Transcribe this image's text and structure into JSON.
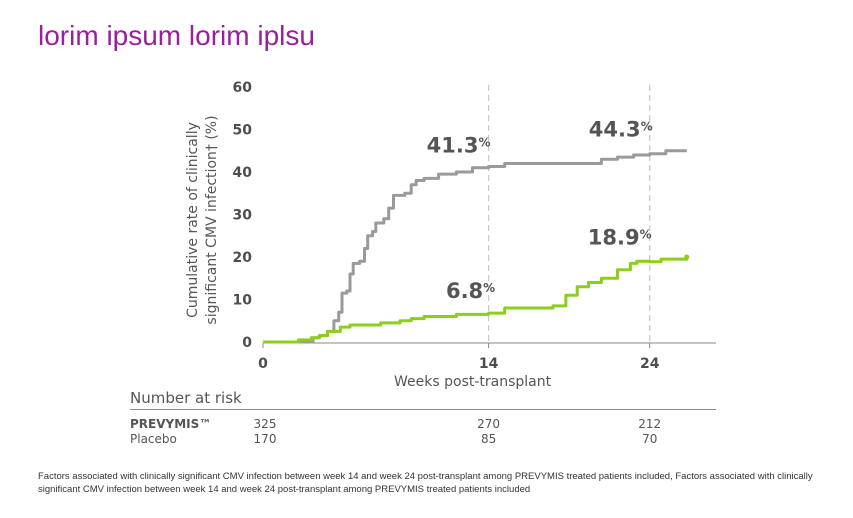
{
  "slide": {
    "title": "lorim ipsum lorim iplsu",
    "footnote": "Factors associated with clinically significant CMV infection between week 14 and week 24 post-transplant among PREVYMIS treated patients included, Factors associated with clinically significant CMV infection between week 14 and week 24 post-transplant among PREVYMIS treated patients included"
  },
  "chart_data": {
    "type": "line",
    "title": "",
    "xlabel": "Weeks post-transplant",
    "ylabel": "Cumulative rate of clinically significant CMV infection† (%)",
    "ylabel_lines": [
      "Cumulative rate of clinically",
      "significant CMV infection† (%)"
    ],
    "xlim": [
      0,
      26.5
    ],
    "ylim": [
      0,
      60
    ],
    "x_ticks": [
      0,
      14,
      24
    ],
    "y_ticks": [
      0,
      10,
      20,
      30,
      40,
      50,
      60
    ],
    "grid": false,
    "reference_lines_x": [
      14,
      24
    ],
    "colors": {
      "gray_series": "#9a9a9a",
      "green_series": "#8ccf1a",
      "title": "#9b1f9b",
      "text": "#555555"
    },
    "series": [
      {
        "color": "#9a9a9a",
        "points": [
          [
            0,
            0
          ],
          [
            3.0,
            0
          ],
          [
            3.1,
            1
          ],
          [
            3.5,
            1.5
          ],
          [
            4.0,
            2.5
          ],
          [
            4.4,
            5
          ],
          [
            4.7,
            7
          ],
          [
            4.9,
            11.5
          ],
          [
            5.2,
            12
          ],
          [
            5.4,
            16
          ],
          [
            5.6,
            18.5
          ],
          [
            6.0,
            19
          ],
          [
            6.3,
            22
          ],
          [
            6.5,
            25
          ],
          [
            6.8,
            26
          ],
          [
            7.0,
            28
          ],
          [
            7.5,
            29
          ],
          [
            7.8,
            31.5
          ],
          [
            8.1,
            34.5
          ],
          [
            8.8,
            35
          ],
          [
            9.2,
            37
          ],
          [
            9.5,
            38
          ],
          [
            10.0,
            38.5
          ],
          [
            10.9,
            39.5
          ],
          [
            12.0,
            40
          ],
          [
            13.0,
            41
          ],
          [
            14.0,
            41.3
          ],
          [
            15.0,
            42
          ],
          [
            17.0,
            42
          ],
          [
            19.0,
            42
          ],
          [
            21.0,
            43
          ],
          [
            22.0,
            43.5
          ],
          [
            23.0,
            44
          ],
          [
            24.0,
            44.3
          ],
          [
            25.0,
            45
          ],
          [
            26.3,
            45
          ]
        ]
      },
      {
        "color": "#8ccf1a",
        "points": [
          [
            0,
            0
          ],
          [
            2.0,
            0
          ],
          [
            2.2,
            0.5
          ],
          [
            3.0,
            1
          ],
          [
            3.5,
            1.5
          ],
          [
            4.0,
            2.5
          ],
          [
            4.8,
            3.5
          ],
          [
            5.4,
            4
          ],
          [
            6.2,
            4
          ],
          [
            7.3,
            4.5
          ],
          [
            8.5,
            5
          ],
          [
            9.2,
            5.5
          ],
          [
            10.0,
            6
          ],
          [
            12.0,
            6.5
          ],
          [
            14.0,
            6.8
          ],
          [
            15.0,
            8
          ],
          [
            16.0,
            8
          ],
          [
            18.0,
            8.5
          ],
          [
            18.8,
            11
          ],
          [
            19.5,
            13
          ],
          [
            20.2,
            14
          ],
          [
            21.0,
            15
          ],
          [
            22.0,
            17
          ],
          [
            22.8,
            18.5
          ],
          [
            23.2,
            19
          ],
          [
            24.0,
            18.9
          ],
          [
            24.7,
            19.5
          ],
          [
            26.3,
            20
          ]
        ]
      }
    ],
    "annotations": [
      {
        "x": 14,
        "y": 41.3,
        "value": "41.3",
        "unit": "%"
      },
      {
        "x": 24,
        "y": 44.3,
        "value": "44.3",
        "unit": "%"
      },
      {
        "x": 14,
        "y": 6.8,
        "value": "6.8",
        "unit": "%"
      },
      {
        "x": 24,
        "y": 18.9,
        "value": "18.9",
        "unit": "%"
      }
    ]
  },
  "risk_table": {
    "header": "Number at risk",
    "timepoints": [
      0,
      14,
      24
    ],
    "rows": [
      {
        "label": "PREVYMIS™",
        "values": [
          "325",
          "270",
          "212"
        ]
      },
      {
        "label": "Placebo",
        "values": [
          "170",
          "85",
          "70"
        ]
      }
    ]
  }
}
